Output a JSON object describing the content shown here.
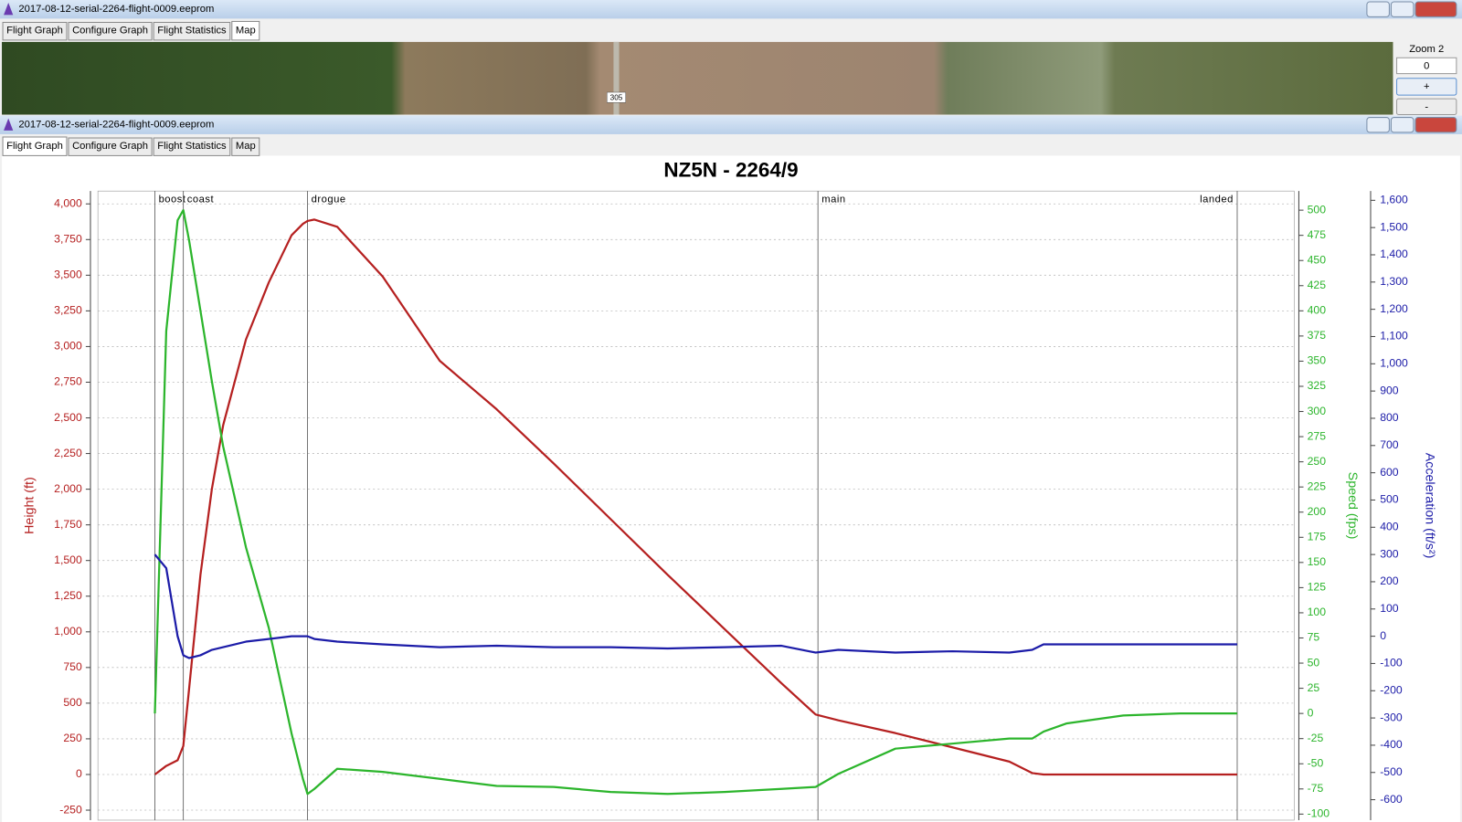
{
  "windows": [
    {
      "title": "2017-08-12-serial-2264-flight-0009.eeprom",
      "tabs": [
        "Flight Graph",
        "Configure Graph",
        "Flight Statistics",
        "Map"
      ],
      "selected_tab": 3
    },
    {
      "title": "2017-08-12-serial-2264-flight-0009.eeprom",
      "tabs": [
        "Flight Graph",
        "Configure Graph",
        "Flight Statistics",
        "Map"
      ],
      "selected_tab": 0
    }
  ],
  "map": {
    "road_label": "305",
    "zoom_label": "Zoom 2",
    "zoom_value": "0",
    "zoom_in": "+",
    "zoom_out": "-"
  },
  "chart_data": {
    "type": "line",
    "title": "NZ5N - 2264/9",
    "x": [
      0,
      1,
      2,
      2.5,
      3,
      4,
      5,
      6,
      8,
      10,
      12,
      13,
      13.4,
      14,
      16,
      20,
      25,
      30,
      35,
      40,
      45,
      50,
      55,
      58,
      60,
      65,
      70,
      75,
      77,
      78,
      80,
      85,
      90,
      95
    ],
    "xlim": [
      -5,
      100
    ],
    "events": [
      {
        "x": 0,
        "label": "boost"
      },
      {
        "x": 2.5,
        "label": "coast"
      },
      {
        "x": 13.4,
        "label": "drogue"
      },
      {
        "x": 58.2,
        "label": "main"
      },
      {
        "x": 95,
        "label": "landed"
      }
    ],
    "ylabel": "Height (ft)",
    "ylim": [
      -320,
      4090
    ],
    "yticks": [
      -250,
      0,
      250,
      500,
      750,
      {
        "value": 1000,
        "label": "1,000"
      },
      {
        "value": 1250,
        "label": "1,250"
      },
      {
        "value": 1500,
        "label": "1,500"
      },
      {
        "value": 1750,
        "label": "1,750"
      },
      {
        "value": 2000,
        "label": "2,000"
      },
      {
        "value": 2250,
        "label": "2,250"
      },
      {
        "value": 2500,
        "label": "2,500"
      },
      {
        "value": 2750,
        "label": "2,750"
      },
      {
        "value": 3000,
        "label": "3,000"
      },
      {
        "value": 3250,
        "label": "3,250"
      },
      {
        "value": 3500,
        "label": "3,500"
      },
      {
        "value": 3750,
        "label": "3,750"
      },
      {
        "value": 4000,
        "label": "4,000"
      }
    ],
    "y2label": "Speed (fps)",
    "y2lim": [
      -106,
      519
    ],
    "y2ticks": [
      -100,
      -75,
      -50,
      -25,
      0,
      25,
      50,
      75,
      100,
      125,
      150,
      175,
      200,
      225,
      250,
      275,
      300,
      325,
      350,
      375,
      400,
      425,
      450,
      475,
      500
    ],
    "y3label": "Acceleration (ft/s²)",
    "y3lim": [
      -675,
      1634
    ],
    "y3ticks": [
      -600,
      -500,
      -400,
      -300,
      -200,
      -100,
      0,
      100,
      200,
      300,
      400,
      500,
      600,
      700,
      800,
      900,
      {
        "value": 1000,
        "label": "1,000"
      },
      {
        "value": 1100,
        "label": "1,100"
      },
      {
        "value": 1200,
        "label": "1,200"
      },
      {
        "value": 1300,
        "label": "1,300"
      },
      {
        "value": 1400,
        "label": "1,400"
      },
      {
        "value": 1500,
        "label": "1,500"
      },
      {
        "value": 1600,
        "label": "1,600"
      }
    ],
    "grid": true,
    "series": [
      {
        "axis": "y",
        "color": "#b52020",
        "values": [
          0,
          60,
          100,
          200,
          600,
          1400,
          2000,
          2450,
          3050,
          3450,
          3780,
          3860,
          3880,
          3890,
          3840,
          3490,
          2900,
          2560,
          2180,
          1790,
          1400,
          1020,
          640,
          420,
          380,
          290,
          190,
          90,
          10,
          0,
          0,
          0,
          0,
          0
        ]
      },
      {
        "axis": "y2",
        "color": "#2cb52c",
        "values": [
          0,
          380,
          490,
          500,
          470,
          400,
          330,
          265,
          165,
          85,
          -20,
          -65,
          -80,
          -75,
          -55,
          -58,
          -65,
          -72,
          -73,
          -78,
          -80,
          -78,
          -75,
          -73,
          -60,
          -35,
          -30,
          -25,
          -25,
          -18,
          -10,
          -2,
          0,
          0
        ]
      },
      {
        "axis": "y3",
        "color": "#1c1ca8",
        "values": [
          300,
          250,
          0,
          -70,
          -80,
          -70,
          -50,
          -40,
          -20,
          -10,
          0,
          0,
          0,
          -10,
          -20,
          -30,
          -40,
          -35,
          -40,
          -40,
          -45,
          -40,
          -35,
          -60,
          -50,
          -60,
          -55,
          -60,
          -50,
          -30,
          -30,
          -30,
          -30,
          -30
        ]
      }
    ]
  }
}
